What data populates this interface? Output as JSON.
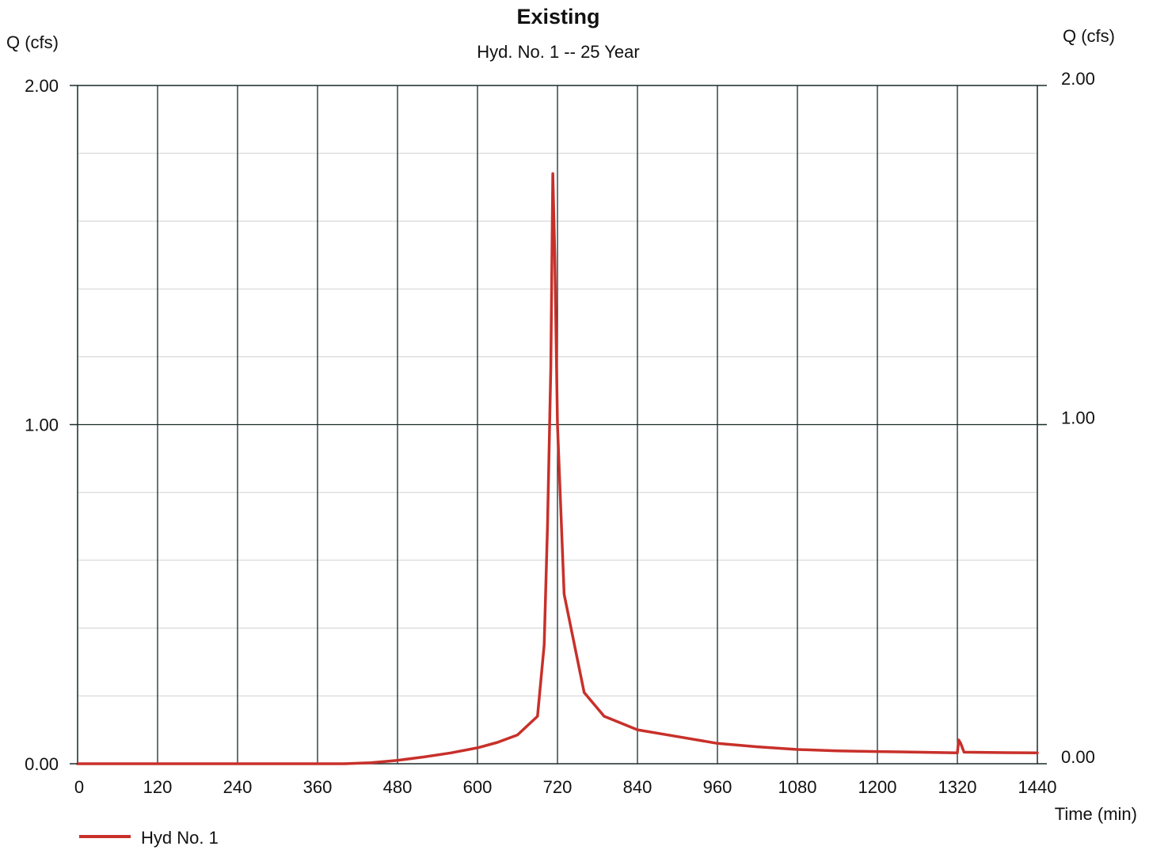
{
  "chart_data": {
    "type": "line",
    "title": "Existing",
    "subtitle": "Hyd. No. 1 -- 25 Year",
    "ylabel_left": "Q (cfs)",
    "ylabel_right": "Q (cfs)",
    "xlabel": "Time (min)",
    "xlim": [
      0,
      1440
    ],
    "ylim": [
      0,
      2
    ],
    "x_ticks": [
      0,
      120,
      240,
      360,
      480,
      600,
      720,
      840,
      960,
      1080,
      1200,
      1320,
      1440
    ],
    "x_tick_labels": [
      "0",
      "120",
      "240",
      "360",
      "480",
      "600",
      "720",
      "840",
      "960",
      "1080",
      "1200",
      "1320",
      "1440"
    ],
    "y_ticks": [
      0,
      1,
      2
    ],
    "y_tick_labels": [
      "0.00",
      "1.00",
      "2.00"
    ],
    "y_minor_step": 0.2,
    "grid": true,
    "legend_position": "bottom-left",
    "series": [
      {
        "name": "Hyd No. 1",
        "color": "#c8302a",
        "x": [
          0,
          120,
          240,
          360,
          400,
          440,
          480,
          520,
          560,
          600,
          630,
          660,
          690,
          700,
          705,
          710,
          713,
          716,
          720,
          725,
          730,
          760,
          790,
          840,
          900,
          960,
          1020,
          1080,
          1140,
          1200,
          1260,
          1320,
          1322,
          1325,
          1330,
          1380,
          1440
        ],
        "y": [
          0.0,
          0.0,
          0.0,
          0.0,
          0.0,
          0.003,
          0.01,
          0.02,
          0.032,
          0.047,
          0.063,
          0.085,
          0.14,
          0.35,
          0.7,
          1.17,
          1.74,
          1.5,
          1.0,
          0.75,
          0.5,
          0.21,
          0.14,
          0.1,
          0.08,
          0.06,
          0.05,
          0.042,
          0.038,
          0.036,
          0.034,
          0.032,
          0.07,
          0.06,
          0.034,
          0.033,
          0.032
        ]
      }
    ]
  }
}
